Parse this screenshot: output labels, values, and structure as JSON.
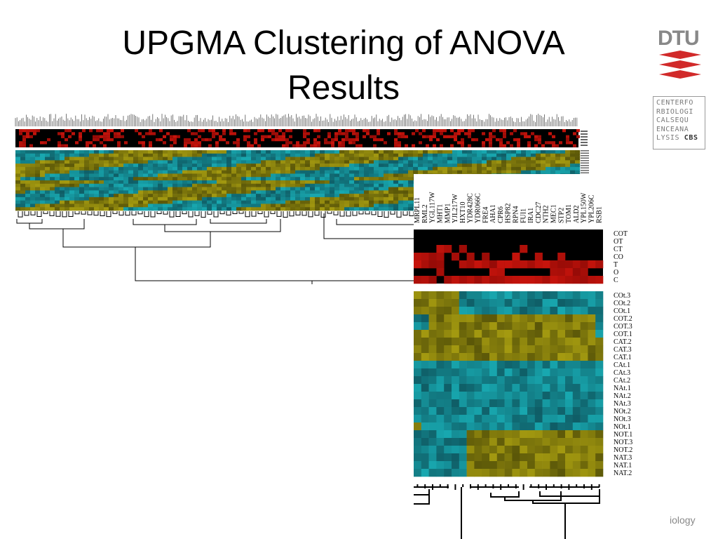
{
  "slide": {
    "title_line1": "UPGMA Clustering of ANOVA",
    "title_line2": "Results",
    "footer_text": "iology"
  },
  "logos": {
    "dtu_text": "DTU",
    "cbs_lines": [
      "CENTERFO",
      "RBIOLOGI",
      "CALSEQU",
      "ENCEANA",
      "LYSIS"
    ],
    "cbs_bold": "CBS"
  },
  "heatmap_zoom": {
    "genes": [
      "MRPL11",
      "RML2",
      "YGL117W",
      "MHT1",
      "MMP1",
      "YJL217W",
      "HXT10",
      "YDR428C",
      "YDR066C",
      "FRE4",
      "AHA1",
      "CPR6",
      "HSP82",
      "RPN4",
      "FUI1",
      "IRA1",
      "CDC27",
      "NTH2",
      "MEC1",
      "STP2",
      "TOM1",
      "ALD2",
      "YPL150W",
      "YPL206C",
      "RSB1"
    ],
    "anova_rows": [
      "COT",
      "OT",
      "CT",
      "CO",
      "T",
      "O",
      "C"
    ],
    "expression_rows": [
      "COt.3",
      "COt.2",
      "COt.1",
      "COT.2",
      "COT.3",
      "COT.1",
      "CAT.2",
      "CAT.3",
      "CAT.1",
      "CAt.1",
      "CAt.3",
      "CAt.2",
      "NAt.1",
      "NAt.2",
      "NAt.3",
      "NOt.2",
      "NOt.3",
      "NOt.1",
      "NOT.1",
      "NOT.3",
      "NOT.2",
      "NAT.3",
      "NAT.1",
      "NAT.2"
    ]
  },
  "colors": {
    "red_high": "#c8140c",
    "black": "#000000",
    "cyan": "#18a8b0",
    "olive": "#a49a10"
  }
}
